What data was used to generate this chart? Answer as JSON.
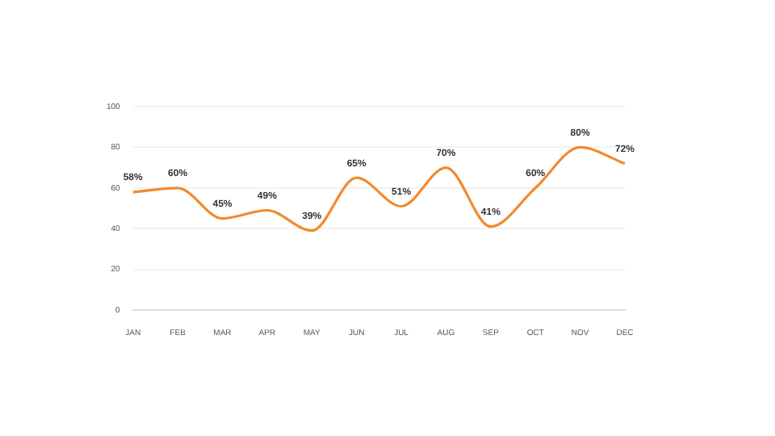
{
  "chart_data": {
    "type": "line",
    "categories": [
      "JAN",
      "FEB",
      "MAR",
      "APR",
      "MAY",
      "JUN",
      "JUL",
      "AUG",
      "SEP",
      "OCT",
      "NOV",
      "DEC"
    ],
    "series": [
      {
        "color": "#f28a2e",
        "values": [
          58,
          60,
          45,
          49,
          39,
          65,
          51,
          70,
          41,
          60,
          80,
          72
        ],
        "value_labels": [
          "58%",
          "60%",
          "45%",
          "49%",
          "39%",
          "65%",
          "51%",
          "70%",
          "41%",
          "60%",
          "80%",
          "72%"
        ]
      }
    ],
    "ylim": [
      0,
      100
    ],
    "yticks": [
      0,
      20,
      40,
      60,
      80,
      100
    ],
    "grid": "y",
    "legend": false,
    "marker": "none",
    "line_style": "solid"
  }
}
